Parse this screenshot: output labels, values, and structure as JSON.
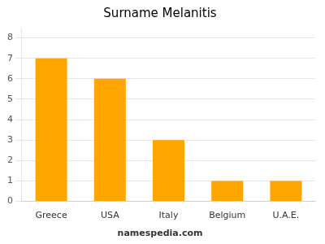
{
  "chart_data": {
    "type": "bar",
    "title": "Surname Melanitis",
    "categories": [
      "Greece",
      "USA",
      "Italy",
      "Belgium",
      "U.A.E."
    ],
    "values": [
      7,
      6,
      3,
      1,
      1
    ],
    "color": "#FFA500",
    "ylim": [
      0,
      8.5
    ],
    "yticks": [
      0,
      1,
      2,
      3,
      4,
      5,
      6,
      7,
      8
    ],
    "grid": true,
    "annotations": [
      "namespedia.com"
    ]
  }
}
